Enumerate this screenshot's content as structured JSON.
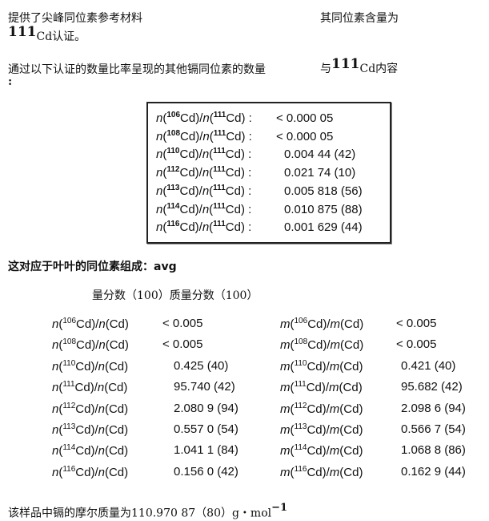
{
  "intro": {
    "line1_left": "提供了尖峰同位素参考材料",
    "line1_right": "其同位素含量为",
    "line2_mass": "111",
    "line2_text": "Cd认证。",
    "line3_left": "通过以下认证的数量比率呈现的其他镉同位素的数量",
    "line3_right_pre": "与",
    "line3_mass": "111",
    "line3_right_post": "Cd内容",
    "line4": ":"
  },
  "ratio_box": [
    {
      "mass": "106",
      "ref": "111",
      "value": "< 0.000 05"
    },
    {
      "mass": "108",
      "ref": "111",
      "value": "< 0.000 05"
    },
    {
      "mass": "110",
      "ref": "111",
      "value": "0.004 44 (42)"
    },
    {
      "mass": "112",
      "ref": "111",
      "value": "0.021 74 (10)"
    },
    {
      "mass": "113",
      "ref": "111",
      "value": "0.005 818 (56)"
    },
    {
      "mass": "114",
      "ref": "111",
      "value": "0.010 875 (88)"
    },
    {
      "mass": "116",
      "ref": "111",
      "value": "0.001 629 (44)"
    }
  ],
  "composition_heading": "这对应于叶叶的同位素组成：avg",
  "column_headers": "量分数（100）质量分数（100）",
  "composition": [
    {
      "mass": "106",
      "n_value": "< 0.005",
      "m_value": "< 0.005"
    },
    {
      "mass": "108",
      "n_value": "< 0.005",
      "m_value": "< 0.005"
    },
    {
      "mass": "110",
      "n_value": "0.425 (40)",
      "m_value": "0.421 (40)"
    },
    {
      "mass": "111",
      "n_value": "95.740 (42)",
      "m_value": "95.682 (42)"
    },
    {
      "mass": "112",
      "n_value": "2.080 9 (94)",
      "m_value": "2.098 6 (94)"
    },
    {
      "mass": "113",
      "n_value": "0.557 0 (54)",
      "m_value": "0.566 7 (54)"
    },
    {
      "mass": "114",
      "n_value": "1.041 1 (84)",
      "m_value": "1.068 8 (86)"
    },
    {
      "mass": "116",
      "n_value": "0.156 0 (42)",
      "m_value": "0.162 9 (44)"
    }
  ],
  "molar_mass": {
    "text": "该样品中镉的摩尔质量为110.970 87（80）g・mol",
    "exp": "−1"
  }
}
